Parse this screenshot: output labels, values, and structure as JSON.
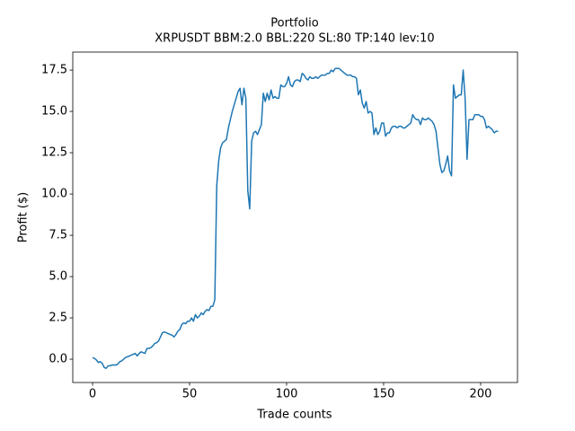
{
  "chart_data": {
    "type": "line",
    "title": "Portfolio",
    "subtitle": "XRPUSDT BBM:2.0 BBL:220 SL:80 TP:140 lev:10",
    "x_label": "Trade counts",
    "y_label": "Profit ($)",
    "color": "#1f77b4",
    "xlim": [
      -10.2,
      219
    ],
    "ylim": [
      -1.41,
      18.59
    ],
    "xticks": [
      0,
      50,
      100,
      150,
      200
    ],
    "yticks": [
      {
        "value": 0,
        "label": "0.0"
      },
      {
        "value": 2.5,
        "label": "2.5"
      },
      {
        "value": 5,
        "label": "5.0"
      },
      {
        "value": 7.5,
        "label": "7.5"
      },
      {
        "value": 10,
        "label": "10.0"
      },
      {
        "value": 12.5,
        "label": "12.5"
      },
      {
        "value": 15,
        "label": "15.0"
      },
      {
        "value": 17.5,
        "label": "17.5"
      }
    ],
    "values": [
      0.1,
      0.05,
      -0.05,
      -0.2,
      -0.15,
      -0.25,
      -0.5,
      -0.55,
      -0.4,
      -0.4,
      -0.35,
      -0.35,
      -0.35,
      -0.3,
      -0.15,
      -0.1,
      0,
      0.1,
      0.15,
      0.2,
      0.25,
      0.3,
      0.35,
      0.2,
      0.35,
      0.45,
      0.4,
      0.35,
      0.65,
      0.65,
      0.7,
      0.8,
      0.95,
      1.0,
      1.1,
      1.35,
      1.6,
      1.65,
      1.6,
      1.55,
      1.5,
      1.45,
      1.35,
      1.5,
      1.7,
      1.8,
      2.1,
      2.2,
      2.15,
      2.3,
      2.3,
      2.5,
      2.3,
      2.7,
      2.5,
      2.6,
      2.8,
      2.7,
      2.9,
      3.0,
      2.95,
      3.2,
      3.2,
      3.6,
      10.5,
      12.0,
      12.8,
      13.1,
      13.2,
      13.3,
      14.0,
      14.5,
      15.0,
      15.4,
      15.8,
      16.2,
      16.4,
      15.4,
      16.4,
      15.8,
      10.2,
      9.1,
      13.2,
      13.7,
      13.8,
      13.6,
      13.9,
      14.2,
      16.1,
      15.6,
      16.1,
      15.7,
      16.3,
      15.8,
      15.9,
      15.8,
      15.8,
      16.6,
      16.5,
      16.5,
      16.7,
      17.1,
      16.6,
      16.5,
      16.8,
      16.9,
      16.9,
      16.8,
      17.3,
      17.2,
      17.0,
      16.9,
      17.1,
      17.0,
      17.0,
      17.1,
      17.0,
      17.1,
      17.2,
      17.2,
      17.2,
      17.3,
      17.3,
      17.5,
      17.4,
      17.6,
      17.6,
      17.6,
      17.5,
      17.4,
      17.3,
      17.2,
      17.2,
      17.2,
      17.1,
      17.1,
      17.0,
      16.0,
      16.3,
      15.5,
      15.2,
      15.6,
      14.9,
      15.0,
      14.9,
      13.6,
      14.0,
      13.6,
      13.8,
      14.3,
      14.3,
      13.5,
      13.7,
      13.7,
      14.0,
      14.1,
      14.1,
      14.0,
      14.1,
      14.1,
      14.0,
      14.0,
      14.1,
      14.2,
      14.3,
      14.8,
      14.6,
      14.5,
      14.5,
      14.2,
      14.6,
      14.5,
      14.5,
      14.6,
      14.5,
      14.4,
      14.2,
      13.8,
      12.8,
      11.8,
      11.3,
      11.4,
      11.8,
      12.3,
      11.4,
      11.1,
      16.6,
      15.8,
      15.9,
      16.0,
      16.0,
      17.5,
      15.8,
      12.1,
      14.5,
      14.5,
      14.5,
      14.8,
      14.8,
      14.8,
      14.7,
      14.7,
      14.5,
      14.0,
      14.1,
      14.0,
      13.9,
      13.7,
      13.8,
      13.8
    ]
  }
}
